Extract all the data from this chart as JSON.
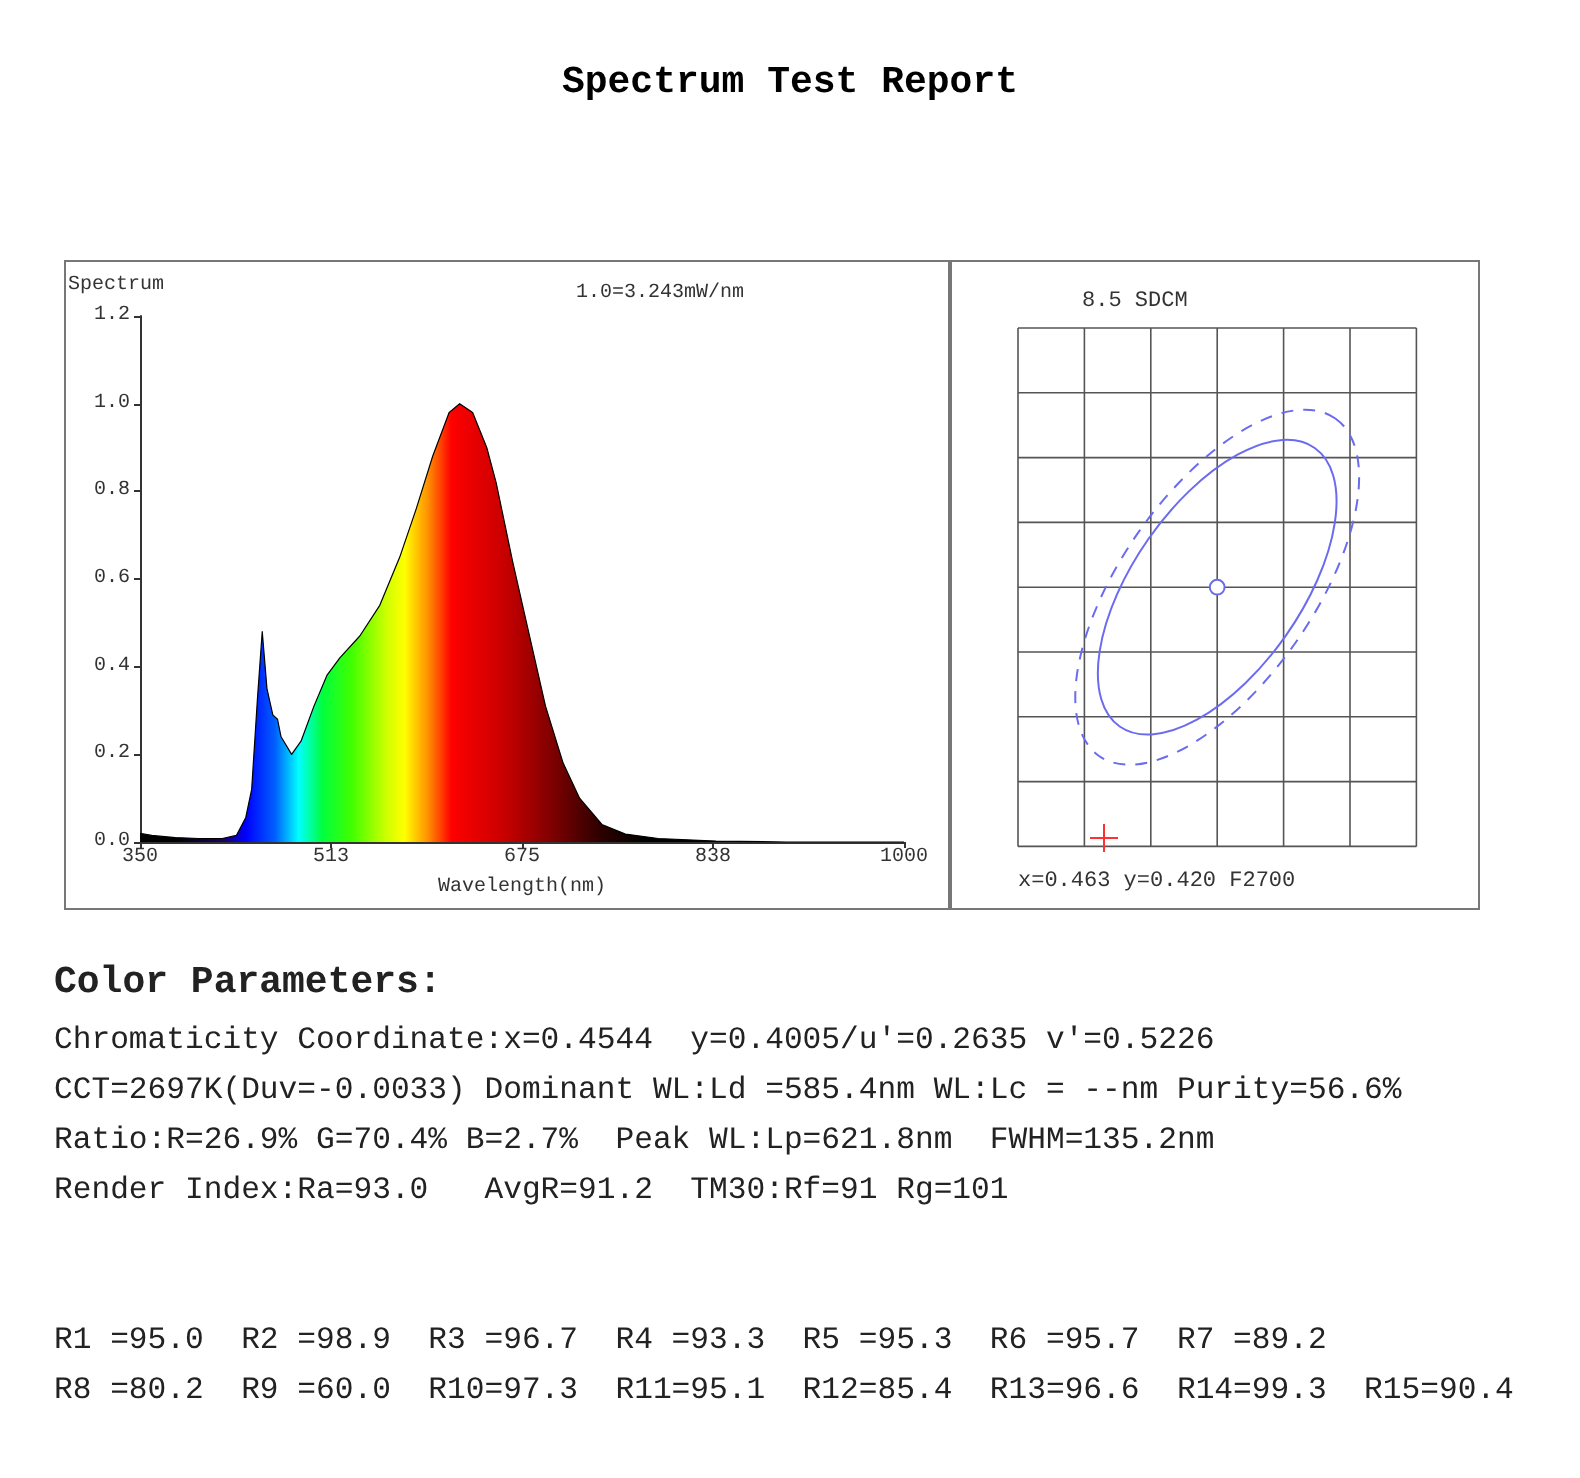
{
  "chart_data": [
    {
      "type": "area",
      "title": "Spectrum Test Report",
      "xlabel": "Wavelength(nm)",
      "ylabel": "Spectrum",
      "annotations": [
        "1.0=3.243mW/nm"
      ],
      "x": [
        350,
        360,
        380,
        400,
        420,
        432,
        440,
        445,
        450,
        454,
        458,
        463,
        467,
        470,
        479,
        487,
        498,
        509,
        520,
        537,
        554,
        571,
        585,
        599,
        613,
        622,
        633,
        645,
        653,
        667,
        678,
        695,
        710,
        724,
        743,
        763,
        791,
        840,
        900,
        1000
      ],
      "values": [
        0.02,
        0.015,
        0.01,
        0.008,
        0.008,
        0.015,
        0.056,
        0.12,
        0.33,
        0.48,
        0.35,
        0.29,
        0.28,
        0.24,
        0.2,
        0.23,
        0.31,
        0.38,
        0.42,
        0.47,
        0.54,
        0.65,
        0.76,
        0.88,
        0.98,
        1.0,
        0.98,
        0.9,
        0.82,
        0.64,
        0.51,
        0.31,
        0.18,
        0.1,
        0.04,
        0.018,
        0.008,
        0.002,
        0,
        0
      ],
      "xlim": [
        350,
        1000
      ],
      "xticks": [
        350,
        {
          "value": 512.5,
          "label": "513"
        },
        675,
        {
          "value": 837.5,
          "label": "838"
        },
        1000
      ],
      "ylim": [
        0,
        1.2
      ],
      "yticks": [
        {
          "value": 0,
          "label": "0.0"
        },
        {
          "value": 0.2,
          "label": "0.2"
        },
        {
          "value": 0.4,
          "label": "0.4"
        },
        {
          "value": 0.6,
          "label": "0.6"
        },
        {
          "value": 0.8,
          "label": "0.8"
        },
        {
          "value": 1,
          "label": "1.0"
        },
        {
          "value": 1.2,
          "label": "1.2"
        }
      ]
    },
    {
      "type": "other",
      "title": "8.5 SDCM",
      "annotations": [
        "x=0.463 y=0.420 F2700"
      ]
    },
    {
      "type": "other",
      "title": "Color Parameters:",
      "annotations": [
        "Chromaticity Coordinate:x=0.4544  y=0.4005/u'=0.2635 v'=0.5226",
        "CCT=2697K(Duv=-0.0033) Dominant WL:Ld =585.4nm WL:Lc = --nm Purity=56.6%",
        "Ratio:R=26.9% G=70.4% B=2.7%  Peak WL:Lp=621.8nm  FWHM=135.2nm",
        "Render Index:Ra=93.0   AvgR=91.2  TM30:Rf=91 Rg=101",
        "R1 =95.0  R2 =98.9  R3 =96.7  R4 =93.3  R5 =95.3  R6 =95.7  R7 =89.2",
        "R8 =80.2  R9 =60.0  R10=97.3  R11=95.1  R12=85.4  R13=96.6  R14=99.3  R15=90.4"
      ]
    }
  ]
}
